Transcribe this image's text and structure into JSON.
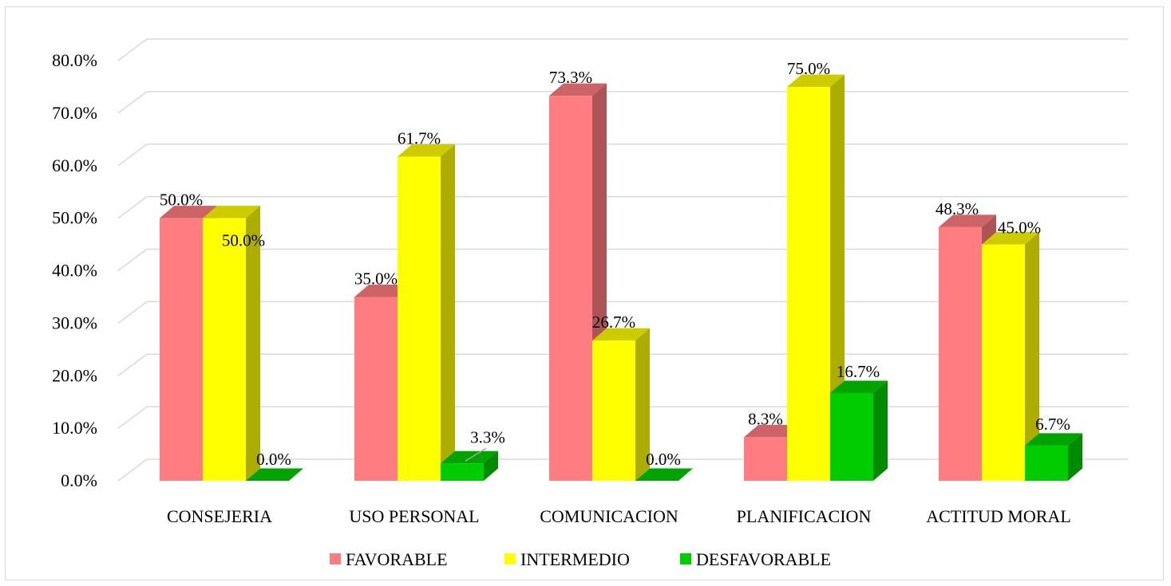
{
  "chart_data": {
    "type": "bar",
    "style": "3d-clustered-column",
    "categories": [
      "CONSEJERIA",
      "USO PERSONAL",
      "COMUNICACION",
      "PLANIFICACION",
      "ACTITUD MORAL"
    ],
    "series": [
      {
        "name": "FAVORABLE",
        "color": "#ff7c80",
        "values": [
          50.0,
          35.0,
          73.3,
          8.3,
          48.3
        ]
      },
      {
        "name": "INTERMEDIO",
        "color": "#ffff00",
        "values": [
          50.0,
          61.7,
          26.7,
          75.0,
          45.0
        ]
      },
      {
        "name": "DESFAVORABLE",
        "color": "#00cc00",
        "values": [
          0.0,
          3.3,
          0.0,
          16.7,
          6.7
        ]
      }
    ],
    "data_labels": [
      [
        "50.0%",
        "35.0%",
        "73.3%",
        "8.3%",
        "48.3%"
      ],
      [
        "50.0%",
        "61.7%",
        "26.7%",
        "75.0%",
        "45.0%"
      ],
      [
        "0.0%",
        "3.3%",
        "0.0%",
        "16.7%",
        "6.7%"
      ]
    ],
    "y_ticks": [
      "0.0%",
      "10.0%",
      "20.0%",
      "30.0%",
      "40.0%",
      "50.0%",
      "60.0%",
      "70.0%",
      "80.0%"
    ],
    "ylim": [
      0,
      80
    ],
    "grid": true,
    "legend_position": "bottom"
  }
}
